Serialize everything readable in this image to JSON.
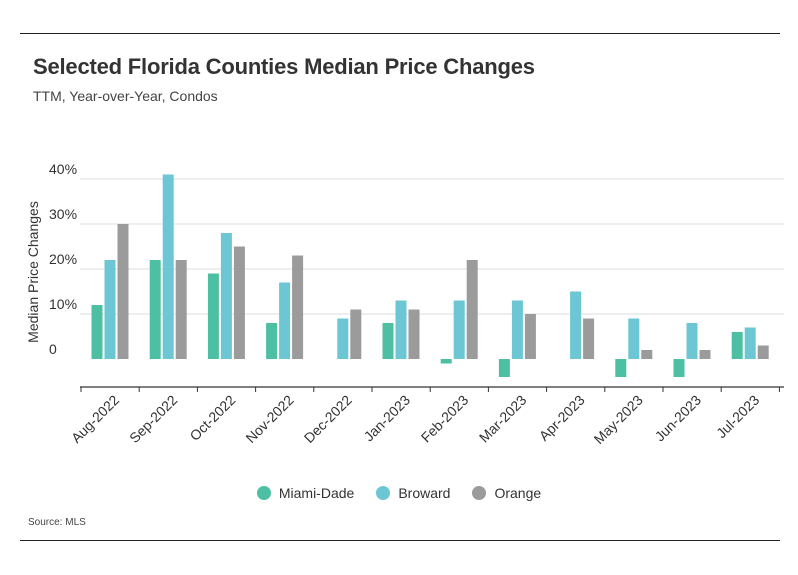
{
  "header": {
    "title": "Selected Florida Counties Median Price Changes",
    "subtitle": "TTM, Year-over-Year, Condos"
  },
  "footer": {
    "source": "Source: MLS"
  },
  "chart_data": {
    "type": "bar",
    "title": "Selected Florida Counties Median Price Changes",
    "subtitle": "TTM, Year-over-Year, Condos",
    "xlabel": "",
    "ylabel": "Median Price Changes",
    "categories": [
      "Aug-2022",
      "Sep-2022",
      "Oct-2022",
      "Nov-2022",
      "Dec-2022",
      "Jan-2023",
      "Feb-2023",
      "Mar-2023",
      "Apr-2023",
      "May-2023",
      "Jun-2023",
      "Jul-2023"
    ],
    "series": [
      {
        "name": "Miami-Dade",
        "color": "#4dbfa3",
        "values": [
          12,
          22,
          19,
          8,
          0,
          8,
          -1,
          -4,
          0,
          -4,
          -4,
          6
        ]
      },
      {
        "name": "Broward",
        "color": "#6cc6d3",
        "values": [
          22,
          41,
          28,
          17,
          9,
          13,
          13,
          13,
          15,
          9,
          8,
          7
        ]
      },
      {
        "name": "Orange",
        "color": "#9b9b9b",
        "values": [
          30,
          22,
          25,
          23,
          11,
          11,
          22,
          10,
          9,
          2,
          2,
          3
        ]
      }
    ],
    "yticks": [
      0,
      10,
      20,
      30,
      40
    ],
    "ytick_labels": [
      "0",
      "10%",
      "20%",
      "30%",
      "40%"
    ],
    "ylim": [
      -6,
      42
    ],
    "grid": true,
    "legend_position": "bottom"
  }
}
